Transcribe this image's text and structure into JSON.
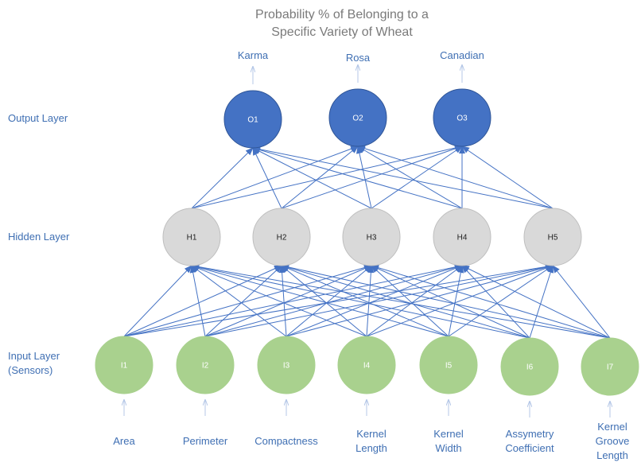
{
  "title": {
    "line1": "Probability % of Belonging to a",
    "line2": "Specific Variety of Wheat"
  },
  "layers": {
    "output": "Output Layer",
    "hidden": "Hidden Layer",
    "input_line1": "Input Layer",
    "input_line2": "(Sensors)"
  },
  "output_labels": [
    "Karma",
    "Rosa",
    "Canadian"
  ],
  "output_nodes": [
    "O1",
    "O2",
    "O3"
  ],
  "hidden_nodes": [
    "H1",
    "H2",
    "H3",
    "H4",
    "H5"
  ],
  "input_nodes": [
    "I1",
    "I2",
    "I3",
    "I4",
    "I5",
    "I6",
    "I7"
  ],
  "input_labels": [
    [
      "Area"
    ],
    [
      "Perimeter"
    ],
    [
      "Compactness"
    ],
    [
      "Kernel",
      "Length"
    ],
    [
      "Kernel",
      "Width"
    ],
    [
      "Assymetry",
      "Coefficient"
    ],
    [
      "Kernel",
      "Groove",
      "Length"
    ]
  ],
  "colors": {
    "output_node": "#4472c4",
    "hidden_node": "#d9d9d9",
    "input_node": "#a9d18e",
    "edge": "#4472c4",
    "label": "#3f6fb3",
    "title": "#7a7a7a",
    "arrow": "#b4c7e7"
  }
}
